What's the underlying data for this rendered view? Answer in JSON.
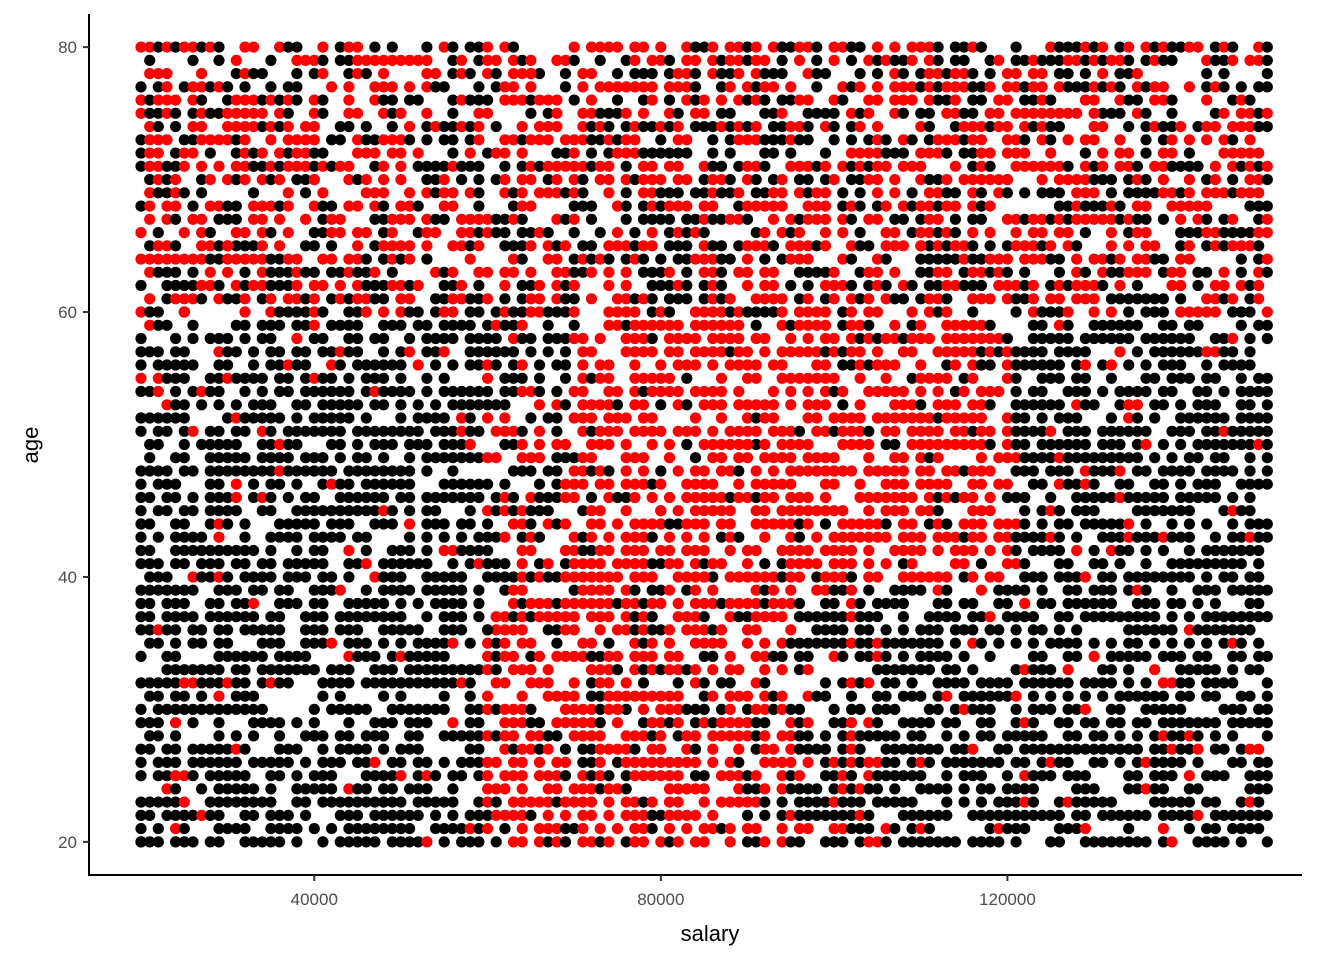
{
  "chart_data": {
    "type": "scatter",
    "title": "",
    "xlabel": "salary",
    "ylabel": "age",
    "xlim": [
      14000,
      154000
    ],
    "ylim": [
      17.5,
      82.5
    ],
    "x_ticks": [
      40000,
      80000,
      120000
    ],
    "y_ticks": [
      20,
      40,
      60,
      80
    ],
    "x_tick_labels": [
      "40000",
      "80000",
      "120000"
    ],
    "y_tick_labels": [
      "20",
      "40",
      "60",
      "80"
    ],
    "grid": false,
    "legend": "none",
    "point_grid": {
      "x_range": [
        20000,
        150000
      ],
      "x_step": 1000,
      "y_range": [
        20,
        80
      ],
      "y_step": 1
    },
    "series": [
      {
        "color": "#000000",
        "description_of_region": "",
        "values": [
          [
            20000,
            20
          ],
          [
            25000,
            22
          ],
          [
            30000,
            24
          ],
          [
            35000,
            26
          ],
          [
            40000,
            28
          ],
          [
            45000,
            30
          ],
          [
            50000,
            32
          ],
          [
            55000,
            34
          ],
          [
            60000,
            36
          ],
          [
            22000,
            40
          ],
          [
            30000,
            44
          ],
          [
            40000,
            48
          ],
          [
            50000,
            52
          ],
          [
            55000,
            54
          ],
          [
            120000,
            22
          ],
          [
            130000,
            26
          ],
          [
            140000,
            30
          ],
          [
            150000,
            34
          ],
          [
            115000,
            38
          ],
          [
            125000,
            42
          ],
          [
            135000,
            46
          ],
          [
            145000,
            50
          ],
          [
            148000,
            54
          ],
          [
            110000,
            28
          ]
        ]
      },
      {
        "color": "#ff0000",
        "description_of_region": "",
        "values": [
          [
            25000,
            60
          ],
          [
            30000,
            65
          ],
          [
            40000,
            70
          ],
          [
            50000,
            75
          ],
          [
            60000,
            80
          ],
          [
            70000,
            62
          ],
          [
            80000,
            45
          ],
          [
            85000,
            40
          ],
          [
            90000,
            50
          ],
          [
            95000,
            55
          ],
          [
            100000,
            48
          ],
          [
            75000,
            30
          ],
          [
            80000,
            25
          ],
          [
            85000,
            35
          ],
          [
            110000,
            65
          ],
          [
            120000,
            70
          ],
          [
            130000,
            75
          ],
          [
            140000,
            60
          ],
          [
            150000,
            66
          ],
          [
            105000,
            52
          ],
          [
            95000,
            42
          ],
          [
            70000,
            34
          ],
          [
            88000,
            58
          ],
          [
            65000,
            78
          ]
        ]
      }
    ],
    "colors": {
      "black_points": "#000000",
      "red_points": "#ff0000"
    }
  }
}
